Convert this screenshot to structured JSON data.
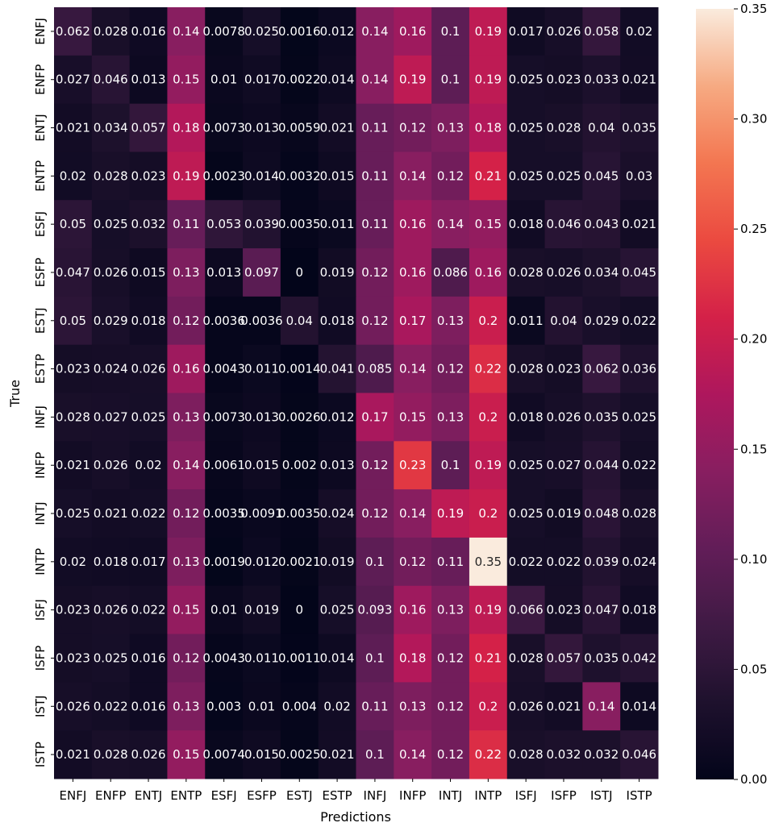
{
  "chart_data": {
    "type": "heatmap",
    "title": "",
    "xlabel": "Predictions",
    "ylabel": "True",
    "x_categories": [
      "ENFJ",
      "ENFP",
      "ENTJ",
      "ENTP",
      "ESFJ",
      "ESFP",
      "ESTJ",
      "ESTP",
      "INFJ",
      "INFP",
      "INTJ",
      "INTP",
      "ISFJ",
      "ISFP",
      "ISTJ",
      "ISTP"
    ],
    "y_categories": [
      "ENFJ",
      "ENFP",
      "ENTJ",
      "ENTP",
      "ESFJ",
      "ESFP",
      "ESTJ",
      "ESTP",
      "INFJ",
      "INFP",
      "INTJ",
      "INTP",
      "ISFJ",
      "ISFP",
      "ISTJ",
      "ISTP"
    ],
    "values": [
      [
        0.062,
        0.028,
        0.016,
        0.14,
        0.0078,
        0.025,
        0.0016,
        0.012,
        0.14,
        0.16,
        0.1,
        0.19,
        0.017,
        0.026,
        0.058,
        0.02
      ],
      [
        0.027,
        0.046,
        0.013,
        0.15,
        0.01,
        0.017,
        0.0022,
        0.014,
        0.14,
        0.19,
        0.1,
        0.19,
        0.025,
        0.023,
        0.033,
        0.021
      ],
      [
        0.021,
        0.034,
        0.057,
        0.18,
        0.0073,
        0.013,
        0.0059,
        0.021,
        0.11,
        0.12,
        0.13,
        0.18,
        0.025,
        0.028,
        0.04,
        0.035
      ],
      [
        0.02,
        0.028,
        0.023,
        0.19,
        0.0023,
        0.014,
        0.0032,
        0.015,
        0.11,
        0.14,
        0.12,
        0.21,
        0.025,
        0.025,
        0.045,
        0.03
      ],
      [
        0.05,
        0.025,
        0.032,
        0.11,
        0.053,
        0.039,
        0.0035,
        0.011,
        0.11,
        0.16,
        0.14,
        0.15,
        0.018,
        0.046,
        0.043,
        0.021
      ],
      [
        0.047,
        0.026,
        0.015,
        0.13,
        0.013,
        0.097,
        0,
        0.019,
        0.12,
        0.16,
        0.086,
        0.16,
        0.028,
        0.026,
        0.034,
        0.045
      ],
      [
        0.05,
        0.029,
        0.018,
        0.12,
        0.0036,
        0.0036,
        0.04,
        0.018,
        0.12,
        0.17,
        0.13,
        0.2,
        0.011,
        0.04,
        0.029,
        0.022
      ],
      [
        0.023,
        0.024,
        0.026,
        0.16,
        0.0043,
        0.011,
        0.0014,
        0.041,
        0.085,
        0.14,
        0.12,
        0.22,
        0.028,
        0.023,
        0.062,
        0.036
      ],
      [
        0.028,
        0.027,
        0.025,
        0.13,
        0.0073,
        0.013,
        0.0026,
        0.012,
        0.17,
        0.15,
        0.13,
        0.2,
        0.018,
        0.026,
        0.035,
        0.025
      ],
      [
        0.021,
        0.026,
        0.02,
        0.14,
        0.0061,
        0.015,
        0.002,
        0.013,
        0.12,
        0.23,
        0.1,
        0.19,
        0.025,
        0.027,
        0.044,
        0.022
      ],
      [
        0.025,
        0.021,
        0.022,
        0.12,
        0.0035,
        0.0091,
        0.0035,
        0.024,
        0.12,
        0.14,
        0.19,
        0.2,
        0.025,
        0.019,
        0.048,
        0.028
      ],
      [
        0.02,
        0.018,
        0.017,
        0.13,
        0.0019,
        0.012,
        0.0021,
        0.019,
        0.1,
        0.12,
        0.11,
        0.35,
        0.022,
        0.022,
        0.039,
        0.024
      ],
      [
        0.023,
        0.026,
        0.022,
        0.15,
        0.01,
        0.019,
        0,
        0.025,
        0.093,
        0.16,
        0.13,
        0.19,
        0.066,
        0.023,
        0.047,
        0.018
      ],
      [
        0.023,
        0.025,
        0.016,
        0.12,
        0.0043,
        0.011,
        0.0011,
        0.014,
        0.1,
        0.18,
        0.12,
        0.21,
        0.028,
        0.057,
        0.035,
        0.042
      ],
      [
        0.026,
        0.022,
        0.016,
        0.13,
        0.003,
        0.01,
        0.004,
        0.02,
        0.11,
        0.13,
        0.12,
        0.2,
        0.026,
        0.021,
        0.14,
        0.014
      ],
      [
        0.021,
        0.028,
        0.026,
        0.15,
        0.0074,
        0.015,
        0.0025,
        0.021,
        0.1,
        0.14,
        0.12,
        0.22,
        0.028,
        0.032,
        0.032,
        0.046
      ]
    ],
    "colorbar": {
      "range": [
        0,
        0.35
      ],
      "ticks": [
        "0.00",
        "0.05",
        "0.10",
        "0.15",
        "0.20",
        "0.25",
        "0.30",
        "0.35"
      ],
      "colormap": "rocket"
    }
  }
}
